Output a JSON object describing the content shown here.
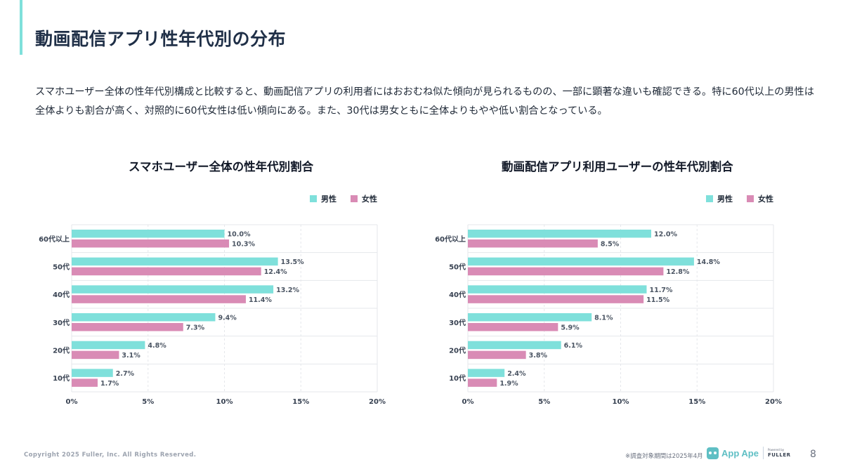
{
  "page": {
    "title": "動画配信アプリ性年代別の分布",
    "intro": "スマホユーザー全体の性年代別構成と比較すると、動画配信アプリの利用者にはおおむね似た傾向が見られるものの、一部に顕著な違いも確認できる。特に60代以上の男性は全体よりも割合が高く、対照的に60代女性は低い傾向にある。また、30代は男女ともに全体よりもやや低い割合となっている。"
  },
  "footer": {
    "copyright": "Copyright 2025 Fuller, Inc. All Rights Reserved.",
    "note": "※調査対象期間は2025年4月",
    "brand": "App Ape",
    "powered_by": "Powered by",
    "company": "FULLER",
    "page_number": "8"
  },
  "colors": {
    "male": "#7fe0db",
    "female": "#d98bb5",
    "accent": "#7fe0db"
  },
  "chart_data": [
    {
      "type": "bar",
      "orientation": "horizontal",
      "title": "スマホユーザー全体の性年代別割合",
      "categories": [
        "60代以上",
        "50代",
        "40代",
        "30代",
        "20代",
        "10代"
      ],
      "series": [
        {
          "name": "男性",
          "values": [
            10.0,
            13.5,
            13.2,
            9.4,
            4.8,
            2.7
          ]
        },
        {
          "name": "女性",
          "values": [
            10.3,
            12.4,
            11.4,
            7.3,
            3.1,
            1.7
          ]
        }
      ],
      "xlim": [
        0,
        20
      ],
      "xticks": [
        "0%",
        "5%",
        "10%",
        "15%",
        "20%"
      ],
      "value_suffix": "%",
      "legend": "top-right",
      "grid": true
    },
    {
      "type": "bar",
      "orientation": "horizontal",
      "title": "動画配信アプリ利用ユーザーの性年代別割合",
      "categories": [
        "60代以上",
        "50代",
        "40代",
        "30代",
        "20代",
        "10代"
      ],
      "series": [
        {
          "name": "男性",
          "values": [
            12.0,
            14.8,
            11.7,
            8.1,
            6.1,
            2.4
          ]
        },
        {
          "name": "女性",
          "values": [
            8.5,
            12.8,
            11.5,
            5.9,
            3.8,
            1.9
          ]
        }
      ],
      "xlim": [
        0,
        20
      ],
      "xticks": [
        "0%",
        "5%",
        "10%",
        "15%",
        "20%"
      ],
      "value_suffix": "%",
      "legend": "top-right",
      "grid": true
    }
  ]
}
